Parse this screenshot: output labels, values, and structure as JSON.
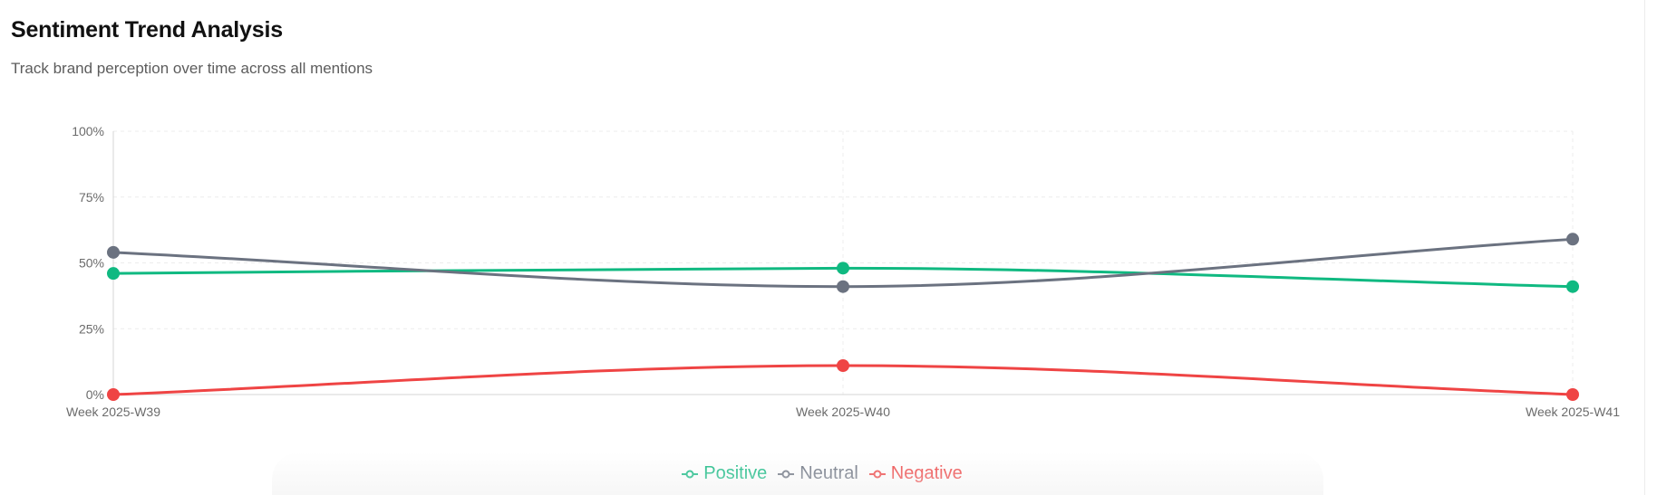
{
  "header": {
    "title": "Sentiment Trend Analysis",
    "subtitle": "Track brand perception over time across all mentions"
  },
  "colors": {
    "positive": "#10b981",
    "neutral": "#6b7280",
    "negative": "#ef4444",
    "grid": "#ececec",
    "axis": "#d6d6d6"
  },
  "chart_data": {
    "type": "line",
    "title": "Sentiment Trend Analysis",
    "subtitle": "Track brand perception over time across all mentions",
    "xlabel": "",
    "ylabel": "",
    "x": [
      "Week 2025-W39",
      "Week 2025-W40",
      "Week 2025-W41"
    ],
    "ylim": [
      0,
      100
    ],
    "yticks": [
      0,
      25,
      50,
      75,
      100
    ],
    "ytick_labels": [
      "0%",
      "25%",
      "50%",
      "75%",
      "100%"
    ],
    "grid": true,
    "legend_position": "bottom-center",
    "series": [
      {
        "name": "Positive",
        "key": "positive",
        "values": [
          46,
          48,
          41
        ]
      },
      {
        "name": "Neutral",
        "key": "neutral",
        "values": [
          54,
          41,
          59
        ]
      },
      {
        "name": "Negative",
        "key": "negative",
        "values": [
          0,
          11,
          0
        ]
      }
    ]
  }
}
